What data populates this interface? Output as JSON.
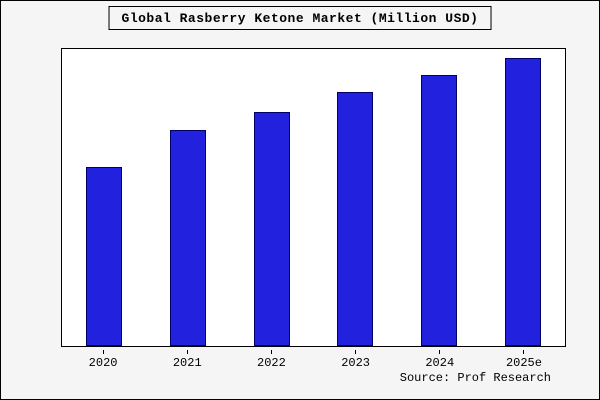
{
  "chart_data": {
    "type": "bar",
    "title": "Global Rasberry Ketone Market (Million USD)",
    "categories": [
      "2020",
      "2021",
      "2022",
      "2023",
      "2024",
      "2025e"
    ],
    "values": [
      62,
      75,
      81,
      88,
      94,
      100
    ],
    "xlabel": "",
    "ylabel": "",
    "ylim": [
      0,
      103
    ],
    "grid": false,
    "legend_position": "none",
    "bar_color": "#2121de",
    "bar_edge_color": "#000066"
  },
  "source": "Source: Prof Research"
}
